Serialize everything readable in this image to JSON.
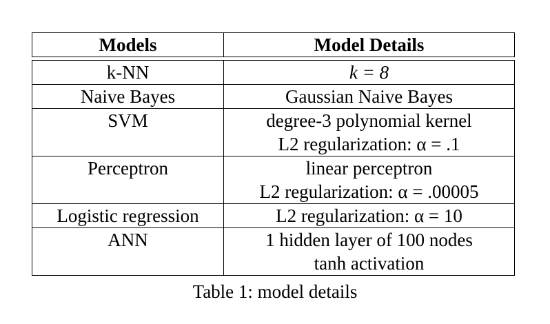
{
  "table": {
    "headers": [
      "Models",
      "Model Details"
    ],
    "rows": [
      {
        "model": "k-NN",
        "details": [
          "k = 8"
        ]
      },
      {
        "model": "Naive Bayes",
        "details": [
          "Gaussian Naive Bayes"
        ]
      },
      {
        "model": "SVM",
        "details": [
          "degree-3 polynomial kernel",
          "L2 regularization: α = .1"
        ]
      },
      {
        "model": "Perceptron",
        "details": [
          "linear perceptron",
          "L2 regularization: α = .00005"
        ]
      },
      {
        "model": "Logistic regression",
        "details": [
          "L2 regularization: α = 10"
        ]
      },
      {
        "model": "ANN",
        "details": [
          "1 hidden layer of 100 nodes",
          "tanh activation"
        ]
      }
    ]
  },
  "caption": "Table 1: model details"
}
